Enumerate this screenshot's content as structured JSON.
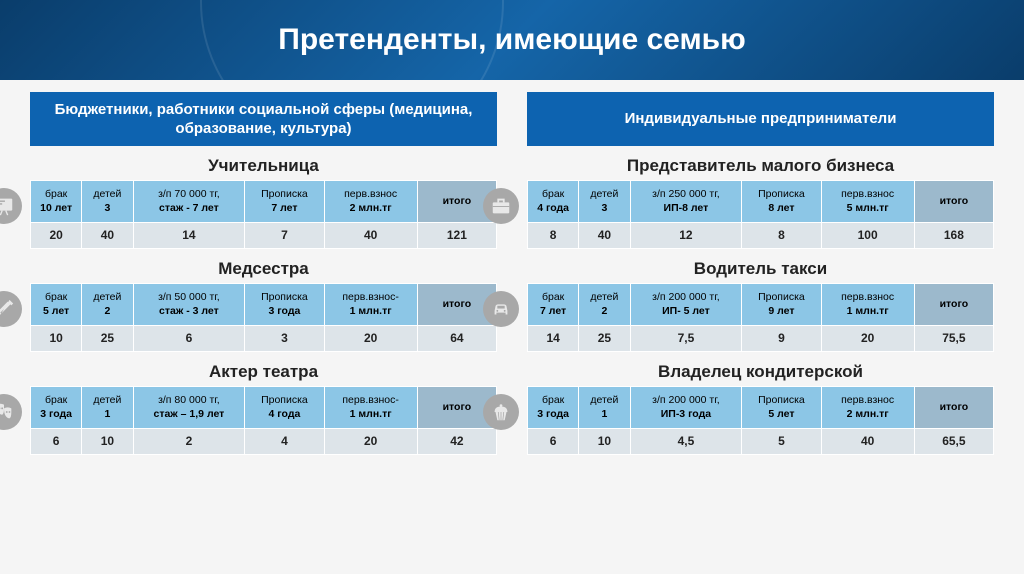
{
  "title": "Претенденты, имеющие семью",
  "left": {
    "header": "Бюджетники, работники социальной сферы (медицина, образование, культура)",
    "sections": [
      {
        "title": "Учительница",
        "icon": "board",
        "headers": [
          {
            "l1": "брак",
            "l2": "10 лет"
          },
          {
            "l1": "детей",
            "l2": "3"
          },
          {
            "l1": "з/п 70 000 тг,",
            "l2": "стаж - 7 лет"
          },
          {
            "l1": "Прописка",
            "l2": "7 лет"
          },
          {
            "l1": "перв.взнос",
            "l2": "2 млн.тг"
          },
          {
            "l1": "итого",
            "l2": ""
          }
        ],
        "values": [
          "20",
          "40",
          "14",
          "7",
          "40",
          "121"
        ]
      },
      {
        "title": "Медсестра",
        "icon": "syringe",
        "headers": [
          {
            "l1": "брак",
            "l2": "5 лет"
          },
          {
            "l1": "детей",
            "l2": "2"
          },
          {
            "l1": "з/п 50 000 тг,",
            "l2": "стаж - 3 лет"
          },
          {
            "l1": "Прописка",
            "l2": "3 года"
          },
          {
            "l1": "перв.взнос-",
            "l2": "1 млн.тг"
          },
          {
            "l1": "итого",
            "l2": ""
          }
        ],
        "values": [
          "10",
          "25",
          "6",
          "3",
          "20",
          "64"
        ]
      },
      {
        "title": "Актер театра",
        "icon": "masks",
        "headers": [
          {
            "l1": "брак",
            "l2": "3 года"
          },
          {
            "l1": "детей",
            "l2": "1"
          },
          {
            "l1": "з/п 80 000 тг,",
            "l2": "стаж – 1,9 лет"
          },
          {
            "l1": "Прописка",
            "l2": "4 года"
          },
          {
            "l1": "перв.взнос-",
            "l2": "1 млн.тг"
          },
          {
            "l1": "итого",
            "l2": ""
          }
        ],
        "values": [
          "6",
          "10",
          "2",
          "4",
          "20",
          "42"
        ]
      }
    ]
  },
  "right": {
    "header": "Индивидуальные предприниматели",
    "sections": [
      {
        "title": "Представитель малого бизнеса",
        "icon": "briefcase",
        "headers": [
          {
            "l1": "брак",
            "l2": "4 года"
          },
          {
            "l1": "детей",
            "l2": "3"
          },
          {
            "l1": "з/п 250 000 тг,",
            "l2": "ИП-8 лет"
          },
          {
            "l1": "Прописка",
            "l2": "8 лет"
          },
          {
            "l1": "перв.взнос",
            "l2": "5 млн.тг"
          },
          {
            "l1": "итого",
            "l2": ""
          }
        ],
        "values": [
          "8",
          "40",
          "12",
          "8",
          "100",
          "168"
        ]
      },
      {
        "title": "Водитель такси",
        "icon": "car",
        "headers": [
          {
            "l1": "брак",
            "l2": "7 лет"
          },
          {
            "l1": "детей",
            "l2": "2"
          },
          {
            "l1": "з/п 200 000 тг,",
            "l2": "ИП- 5 лет"
          },
          {
            "l1": "Прописка",
            "l2": "9 лет"
          },
          {
            "l1": "перв.взнос",
            "l2": "1 млн.тг"
          },
          {
            "l1": "итого",
            "l2": ""
          }
        ],
        "values": [
          "14",
          "25",
          "7,5",
          "9",
          "20",
          "75,5"
        ]
      },
      {
        "title": "Владелец кондитерской",
        "icon": "cupcake",
        "headers": [
          {
            "l1": "брак",
            "l2": "3 года"
          },
          {
            "l1": "детей",
            "l2": "1"
          },
          {
            "l1": "з/п 200 000 тг,",
            "l2": "ИП-3 года"
          },
          {
            "l1": "Прописка",
            "l2": "5 лет"
          },
          {
            "l1": "перв.взнос",
            "l2": "2 млн.тг"
          },
          {
            "l1": "итого",
            "l2": ""
          }
        ],
        "values": [
          "6",
          "10",
          "4,5",
          "5",
          "40",
          "65,5"
        ]
      }
    ]
  }
}
